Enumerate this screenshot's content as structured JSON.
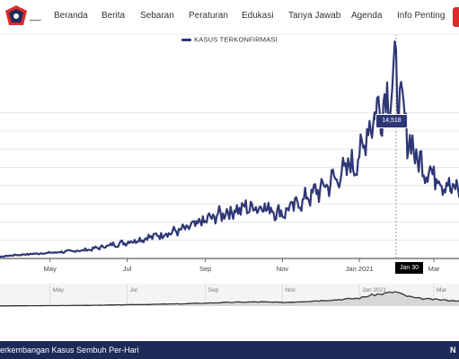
{
  "nav": {
    "items": [
      "Beranda",
      "Berita",
      "Sebaran",
      "Peraturan",
      "Edukasi",
      "Tanya Jawab",
      "Agenda",
      "Info Penting"
    ]
  },
  "chart_data": {
    "type": "line",
    "series": [
      {
        "name": "KASUS TERKONFIRMASI",
        "color": "#2e3775",
        "x": [
          "2020-03-02",
          "2020-03-20",
          "2020-04-01",
          "2020-04-15",
          "2020-05-01",
          "2020-05-15",
          "2020-06-01",
          "2020-06-15",
          "2020-07-01",
          "2020-07-15",
          "2020-08-01",
          "2020-08-15",
          "2020-09-01",
          "2020-09-15",
          "2020-10-01",
          "2020-10-15",
          "2020-11-01",
          "2020-11-15",
          "2020-12-01",
          "2020-12-15",
          "2021-01-01",
          "2021-01-10",
          "2021-01-20",
          "2021-01-30",
          "2021-02-05",
          "2021-02-15",
          "2021-02-25",
          "2021-03-05",
          "2021-03-15"
        ],
        "values": [
          2,
          100,
          250,
          350,
          450,
          550,
          700,
          1000,
          1300,
          1600,
          2000,
          2300,
          3000,
          3600,
          4000,
          4200,
          3600,
          4500,
          5500,
          6500,
          8000,
          11000,
          12500,
          14518,
          11000,
          8000,
          7000,
          6500,
          5500
        ]
      }
    ],
    "x_tick_labels": [
      "May",
      "Jul",
      "Sep",
      "Nov",
      "Jan 2021",
      "Mar"
    ],
    "tooltip": {
      "value": "14,518",
      "date_label": "Jan 30"
    },
    "grid": true
  },
  "navigator": {
    "tick_labels": [
      "May",
      "Jul",
      "Sep",
      "Nov",
      "Jan 2021",
      "Mar"
    ]
  },
  "footer": {
    "title": "Perkembangan Kasus Sembuh Per-Hari",
    "right_text": "N"
  },
  "colors": {
    "series": "#2e3775",
    "footer": "#1d2a58",
    "accent": "#d82b2b"
  }
}
